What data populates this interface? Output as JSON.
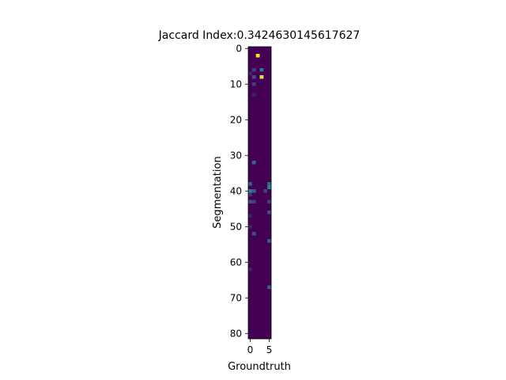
{
  "chart_data": {
    "type": "heatmap",
    "title": "Jaccard Index:0.3424630145617627",
    "xlabel": "Groundtruth",
    "ylabel": "Segmentation",
    "n_cols": 6,
    "n_rows": 82,
    "x_ticks": [
      0,
      5
    ],
    "y_ticks": [
      0,
      10,
      20,
      30,
      40,
      50,
      60,
      70,
      80
    ],
    "colormap": [
      "#440154",
      "#3b528b",
      "#21918c",
      "#5ec962",
      "#fde725"
    ],
    "background_value": 0.0,
    "cells": [
      {
        "row": 2,
        "col": 2,
        "value": 1.0
      },
      {
        "row": 6,
        "col": 1,
        "value": 0.2
      },
      {
        "row": 6,
        "col": 3,
        "value": 0.4
      },
      {
        "row": 7,
        "col": 0,
        "value": 0.1
      },
      {
        "row": 8,
        "col": 1,
        "value": 0.25
      },
      {
        "row": 8,
        "col": 3,
        "value": 0.95
      },
      {
        "row": 10,
        "col": 1,
        "value": 0.2
      },
      {
        "row": 13,
        "col": 1,
        "value": 0.1
      },
      {
        "row": 32,
        "col": 1,
        "value": 0.35
      },
      {
        "row": 38,
        "col": 0,
        "value": 0.3
      },
      {
        "row": 38,
        "col": 5,
        "value": 0.35
      },
      {
        "row": 39,
        "col": 5,
        "value": 0.45
      },
      {
        "row": 40,
        "col": 0,
        "value": 0.45
      },
      {
        "row": 40,
        "col": 1,
        "value": 0.3
      },
      {
        "row": 40,
        "col": 4,
        "value": 0.2
      },
      {
        "row": 41,
        "col": 0,
        "value": 0.15
      },
      {
        "row": 43,
        "col": 0,
        "value": 0.25
      },
      {
        "row": 43,
        "col": 1,
        "value": 0.2
      },
      {
        "row": 43,
        "col": 5,
        "value": 0.2
      },
      {
        "row": 46,
        "col": 5,
        "value": 0.25
      },
      {
        "row": 47,
        "col": 0,
        "value": 0.1
      },
      {
        "row": 50,
        "col": 0,
        "value": 0.1
      },
      {
        "row": 52,
        "col": 1,
        "value": 0.25
      },
      {
        "row": 54,
        "col": 5,
        "value": 0.3
      },
      {
        "row": 62,
        "col": 0,
        "value": 0.1
      },
      {
        "row": 67,
        "col": 5,
        "value": 0.3
      }
    ]
  }
}
